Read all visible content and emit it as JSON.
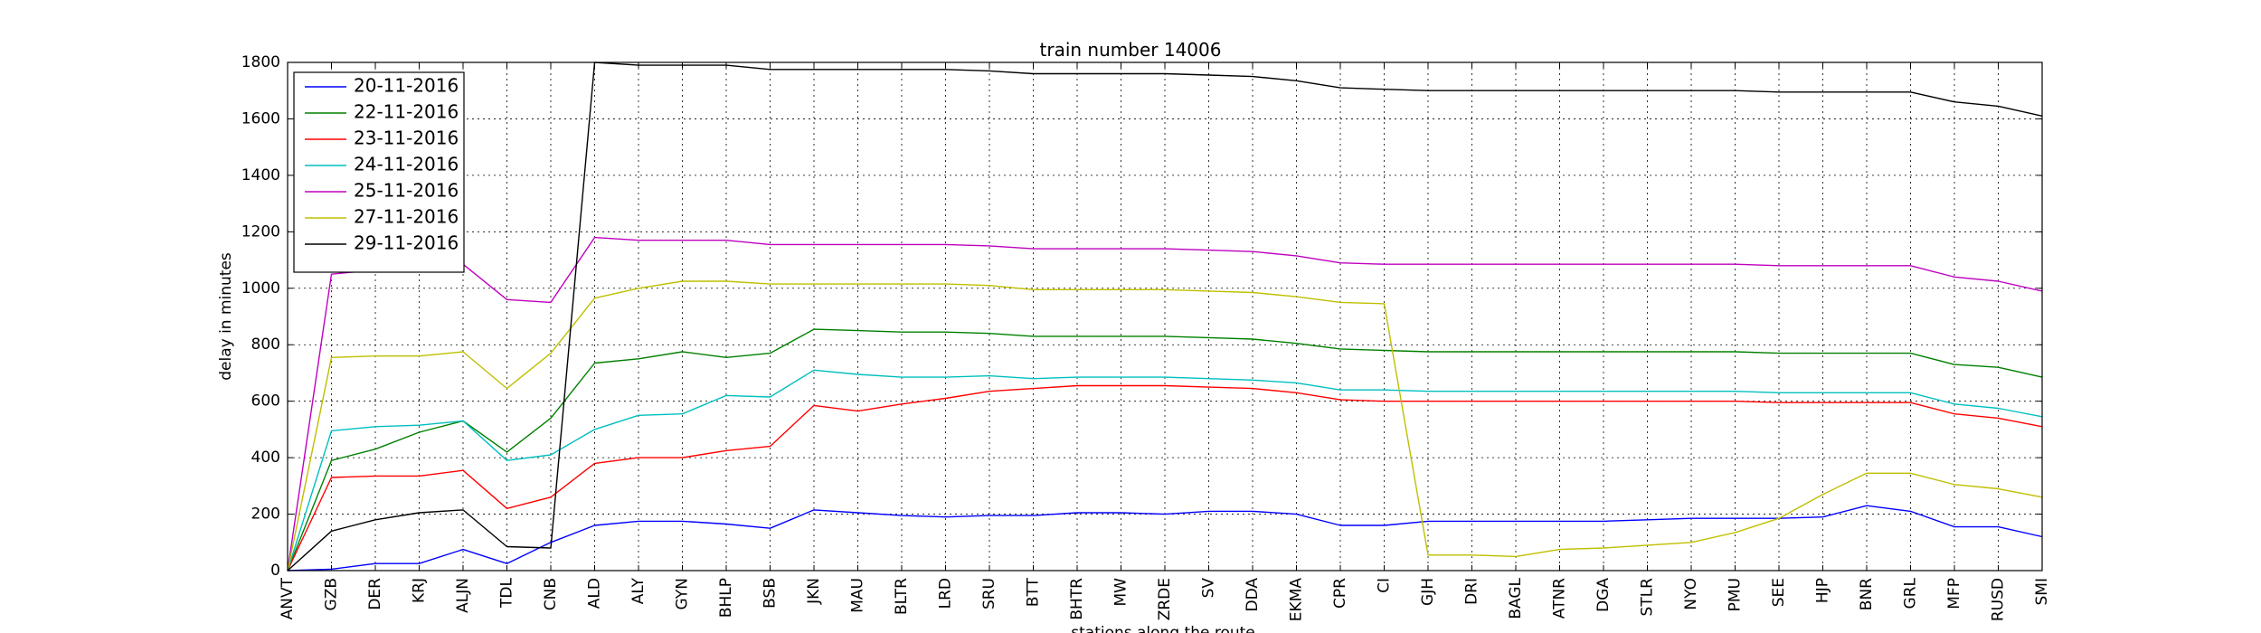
{
  "chart_data": {
    "type": "line",
    "title": "train number 14006",
    "xlabel": "stations along the route",
    "ylabel": "delay in minutes",
    "ylim": [
      0,
      1800
    ],
    "yticks": [
      0,
      200,
      400,
      600,
      800,
      1000,
      1200,
      1400,
      1600,
      1800
    ],
    "grid": true,
    "legend_position": "top-left",
    "categories": [
      "ANVT",
      "GZB",
      "DER",
      "KRJ",
      "ALJN",
      "TDL",
      "CNB",
      "ALD",
      "ALY",
      "GYN",
      "BHLP",
      "BSB",
      "JKN",
      "MAU",
      "BLTR",
      "LRD",
      "SRU",
      "BTT",
      "BHTR",
      "MW",
      "ZRDE",
      "SV",
      "DDA",
      "EKMA",
      "CPR",
      "CI",
      "GJH",
      "DRI",
      "BAGL",
      "ATNR",
      "DGA",
      "STLR",
      "NYO",
      "PMU",
      "SEE",
      "HJP",
      "BNR",
      "GRL",
      "MFP",
      "RUSD",
      "SMI"
    ],
    "series": [
      {
        "name": "20-11-2016",
        "color": "#0000ff",
        "values": [
          0,
          5,
          25,
          25,
          75,
          25,
          100,
          160,
          175,
          175,
          165,
          150,
          215,
          205,
          195,
          190,
          195,
          195,
          205,
          205,
          200,
          210,
          210,
          200,
          160,
          160,
          175,
          175,
          175,
          175,
          175,
          180,
          185,
          185,
          185,
          190,
          230,
          210,
          155,
          155,
          120
        ]
      },
      {
        "name": "22-11-2016",
        "color": "#008000",
        "values": [
          0,
          390,
          430,
          490,
          530,
          420,
          540,
          735,
          750,
          775,
          755,
          770,
          855,
          850,
          845,
          845,
          840,
          830,
          830,
          830,
          830,
          825,
          820,
          805,
          785,
          780,
          775,
          775,
          775,
          775,
          775,
          775,
          775,
          775,
          770,
          770,
          770,
          770,
          730,
          720,
          685
        ]
      },
      {
        "name": "23-11-2016",
        "color": "#ff0000",
        "values": [
          0,
          330,
          335,
          335,
          355,
          220,
          260,
          380,
          400,
          400,
          425,
          440,
          585,
          565,
          590,
          610,
          635,
          645,
          655,
          655,
          655,
          650,
          645,
          630,
          605,
          600,
          600,
          600,
          600,
          600,
          600,
          600,
          600,
          600,
          595,
          595,
          595,
          595,
          555,
          540,
          510
        ]
      },
      {
        "name": "24-11-2016",
        "color": "#00bfbf",
        "values": [
          0,
          495,
          510,
          515,
          530,
          390,
          410,
          500,
          550,
          555,
          620,
          615,
          710,
          695,
          685,
          685,
          690,
          680,
          685,
          685,
          685,
          680,
          675,
          665,
          640,
          640,
          635,
          635,
          635,
          635,
          635,
          635,
          635,
          635,
          630,
          630,
          630,
          630,
          590,
          575,
          545
        ]
      },
      {
        "name": "25-11-2016",
        "color": "#bf00bf",
        "values": [
          0,
          1050,
          1065,
          1075,
          1085,
          960,
          950,
          1180,
          1170,
          1170,
          1170,
          1155,
          1155,
          1155,
          1155,
          1155,
          1150,
          1140,
          1140,
          1140,
          1140,
          1135,
          1130,
          1115,
          1090,
          1085,
          1085,
          1085,
          1085,
          1085,
          1085,
          1085,
          1085,
          1085,
          1080,
          1080,
          1080,
          1080,
          1040,
          1025,
          990
        ]
      },
      {
        "name": "27-11-2016",
        "color": "#bfbf00",
        "values": [
          0,
          755,
          760,
          760,
          775,
          645,
          770,
          965,
          1000,
          1025,
          1025,
          1015,
          1015,
          1015,
          1015,
          1015,
          1010,
          995,
          995,
          995,
          995,
          990,
          985,
          970,
          950,
          945,
          55,
          55,
          50,
          75,
          80,
          90,
          100,
          135,
          185,
          270,
          345,
          345,
          305,
          290,
          260
        ]
      },
      {
        "name": "29-11-2016",
        "color": "#000000",
        "values": [
          0,
          140,
          180,
          205,
          215,
          85,
          80,
          1800,
          1790,
          1790,
          1790,
          1775,
          1775,
          1775,
          1775,
          1775,
          1770,
          1760,
          1760,
          1760,
          1760,
          1755,
          1750,
          1735,
          1710,
          1705,
          1700,
          1700,
          1700,
          1700,
          1700,
          1700,
          1700,
          1700,
          1695,
          1695,
          1695,
          1695,
          1660,
          1645,
          1610
        ]
      }
    ]
  }
}
